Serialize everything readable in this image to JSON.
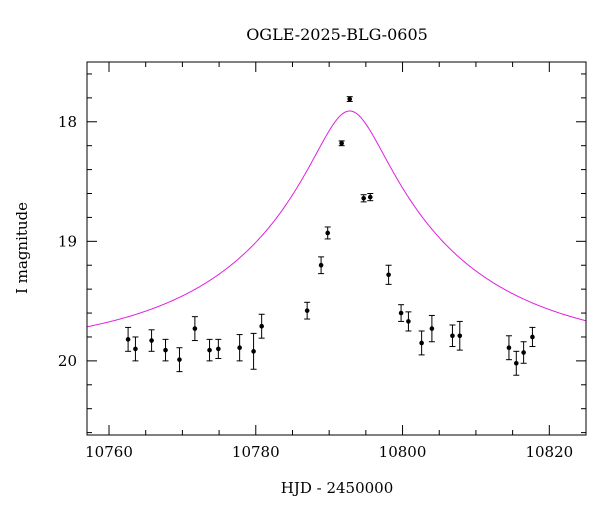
{
  "chart_data": {
    "type": "scatter",
    "title": "OGLE-2025-BLG-0605",
    "xlabel": "HJD - 2450000",
    "ylabel": "I magnitude",
    "xlim": [
      10757,
      10825
    ],
    "ylim": [
      20.62,
      17.5
    ],
    "y_inverted": true,
    "grid": false,
    "x_ticks": [
      10760,
      10780,
      10800,
      10820
    ],
    "x_tick_labels": [
      "10760",
      "10780",
      "10800",
      "10820"
    ],
    "y_ticks": [
      18,
      19,
      20
    ],
    "y_tick_labels": [
      "18",
      "19",
      "20"
    ],
    "series": [
      {
        "kind": "points_with_errors",
        "color": "#000000",
        "x": [
          10762.6,
          10763.6,
          10765.8,
          10767.7,
          10769.6,
          10771.7,
          10773.7,
          10774.9,
          10777.8,
          10779.7,
          10780.8,
          10787.0,
          10788.9,
          10789.8,
          10791.7,
          10792.8,
          10794.7,
          10795.6,
          10798.1,
          10799.8,
          10800.8,
          10802.6,
          10804.0,
          10806.8,
          10807.8,
          10814.5,
          10815.5,
          10816.5,
          10817.7
        ],
        "y": [
          19.82,
          19.9,
          19.83,
          19.91,
          19.99,
          19.73,
          19.91,
          19.9,
          19.89,
          19.92,
          19.71,
          19.58,
          19.2,
          18.93,
          18.18,
          17.81,
          18.64,
          18.63,
          19.28,
          19.6,
          19.67,
          19.85,
          19.73,
          19.79,
          19.79,
          19.89,
          20.02,
          19.93,
          19.8
        ],
        "err": [
          0.1,
          0.1,
          0.09,
          0.09,
          0.1,
          0.1,
          0.09,
          0.08,
          0.11,
          0.15,
          0.1,
          0.07,
          0.07,
          0.05,
          0.02,
          0.02,
          0.03,
          0.03,
          0.08,
          0.07,
          0.08,
          0.1,
          0.11,
          0.09,
          0.12,
          0.1,
          0.1,
          0.09,
          0.08
        ]
      },
      {
        "kind": "model_curve",
        "color": "#e020e0",
        "t0": 10792.8,
        "tE": 29.5,
        "u0": 0.157,
        "I_base": 19.93
      }
    ]
  }
}
